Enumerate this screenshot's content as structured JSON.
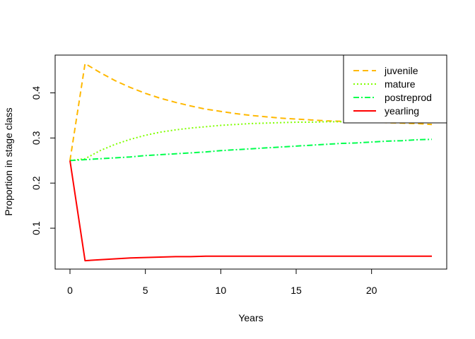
{
  "chart_data": {
    "type": "line",
    "title": "",
    "xlabel": "Years",
    "ylabel": "Proportion in stage class",
    "xlim": [
      0,
      24
    ],
    "ylim": [
      0.025,
      0.465
    ],
    "xticks": [
      0,
      5,
      10,
      15,
      20
    ],
    "yticks": [
      0.1,
      0.2,
      0.3,
      0.4
    ],
    "xtick_labels": [
      "0",
      "5",
      "10",
      "15",
      "20"
    ],
    "ytick_labels": [
      "0.1",
      "0.2",
      "0.3",
      "0.4"
    ],
    "legend_position": "top-right",
    "x": [
      0,
      1,
      2,
      3,
      4,
      5,
      6,
      7,
      8,
      9,
      10,
      11,
      12,
      13,
      14,
      15,
      16,
      17,
      18,
      19,
      20,
      21,
      22,
      23,
      24
    ],
    "series": [
      {
        "name": "juvenile",
        "color": "#FFB800",
        "dash": "8,5",
        "values": [
          0.25,
          0.465,
          0.445,
          0.427,
          0.412,
          0.399,
          0.388,
          0.379,
          0.371,
          0.364,
          0.359,
          0.354,
          0.35,
          0.347,
          0.344,
          0.342,
          0.34,
          0.338,
          0.337,
          0.336,
          0.335,
          0.334,
          0.333,
          0.332,
          0.33
        ]
      },
      {
        "name": "mature",
        "color": "#80FF00",
        "dash": "2,3",
        "values": [
          0.25,
          0.254,
          0.272,
          0.286,
          0.297,
          0.306,
          0.313,
          0.318,
          0.322,
          0.325,
          0.328,
          0.33,
          0.332,
          0.333,
          0.334,
          0.335,
          0.335,
          0.336,
          0.336,
          0.336,
          0.336,
          0.336,
          0.336,
          0.336,
          0.336
        ]
      },
      {
        "name": "postreprod",
        "color": "#00FF4D",
        "dash": "8,3,2,3",
        "values": [
          0.25,
          0.252,
          0.254,
          0.256,
          0.258,
          0.261,
          0.263,
          0.265,
          0.267,
          0.269,
          0.272,
          0.274,
          0.276,
          0.278,
          0.28,
          0.282,
          0.284,
          0.286,
          0.288,
          0.289,
          0.291,
          0.293,
          0.294,
          0.296,
          0.297
        ]
      },
      {
        "name": "yearling",
        "color": "#FF0000",
        "dash": "",
        "values": [
          0.25,
          0.028,
          0.03,
          0.032,
          0.034,
          0.035,
          0.036,
          0.037,
          0.037,
          0.038,
          0.038,
          0.038,
          0.038,
          0.038,
          0.038,
          0.038,
          0.038,
          0.038,
          0.038,
          0.038,
          0.038,
          0.038,
          0.038,
          0.038,
          0.038
        ]
      }
    ]
  }
}
